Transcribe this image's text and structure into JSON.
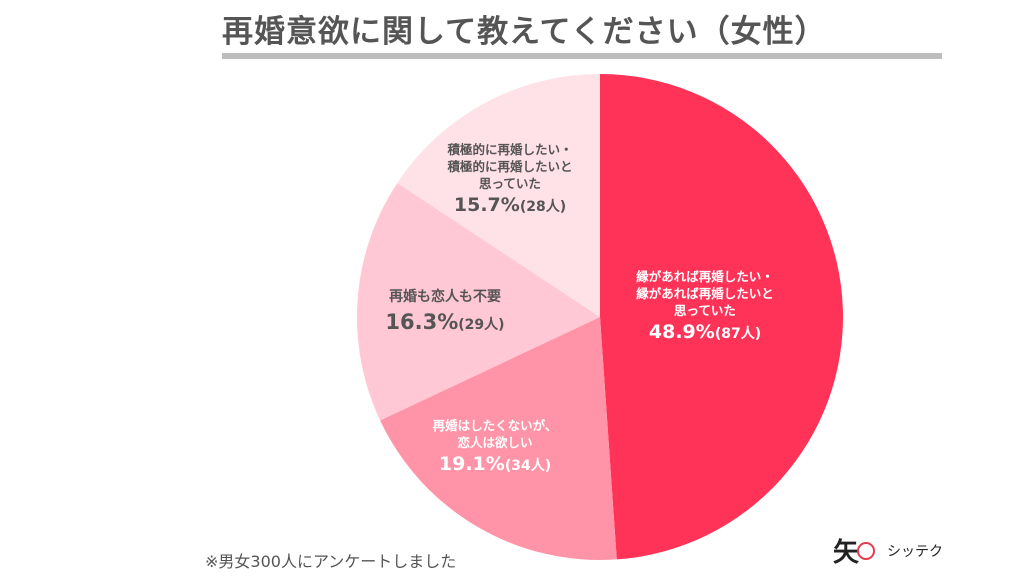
{
  "chart_data": {
    "type": "pie",
    "title": "再婚意欲に関して教えてください（女性）",
    "note": "※男女300人にアンケートしました",
    "start_angle": "top",
    "direction": "clockwise",
    "slices": [
      {
        "label_lines": [
          "縁があれば再婚したい・",
          "縁があれば再婚したいと",
          "思っていた"
        ],
        "value": 48.9,
        "value_text": "48.9%",
        "count_text": "(87人)",
        "color": "#ff3358"
      },
      {
        "label_lines": [
          "再婚はしたくないが、",
          "恋人は欲しい"
        ],
        "value": 19.1,
        "value_text": "19.1%",
        "count_text": "(34人)",
        "color": "#ff94a8"
      },
      {
        "label_lines": [
          "再婚も恋人も不要"
        ],
        "value": 16.3,
        "value_text": "16.3%",
        "count_text": "(29人)",
        "color": "#ffc8d4"
      },
      {
        "label_lines": [
          "積極的に再婚したい・",
          "積極的に再婚したいと",
          "思っていた"
        ],
        "value": 15.7,
        "value_text": "15.7%",
        "count_text": "(28人)",
        "color": "#ffe1e8"
      }
    ]
  },
  "logo": {
    "mark": "矢",
    "name": "シッテク"
  }
}
